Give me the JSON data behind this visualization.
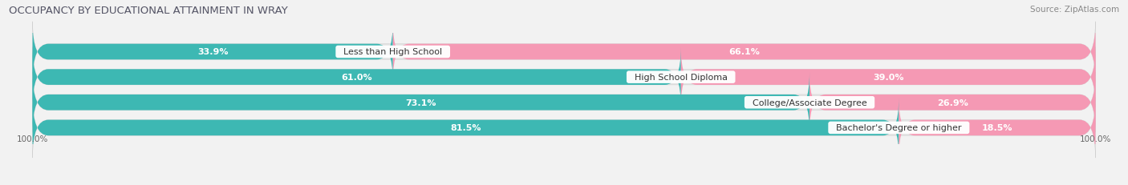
{
  "title": "OCCUPANCY BY EDUCATIONAL ATTAINMENT IN WRAY",
  "source": "Source: ZipAtlas.com",
  "categories": [
    "Less than High School",
    "High School Diploma",
    "College/Associate Degree",
    "Bachelor's Degree or higher"
  ],
  "owner_values": [
    33.9,
    61.0,
    73.1,
    81.5
  ],
  "renter_values": [
    66.1,
    39.0,
    26.9,
    18.5
  ],
  "owner_color": "#3db8b3",
  "renter_color": "#f599b4",
  "background_color": "#f2f2f2",
  "bar_bg_color": "#e2e2e2",
  "row_bg_color": "#e8e8e8",
  "title_fontsize": 9.5,
  "source_fontsize": 7.5,
  "label_fontsize": 8,
  "value_fontsize": 8,
  "tick_fontsize": 7.5,
  "axis_label_left": "100.0%",
  "axis_label_right": "100.0%"
}
